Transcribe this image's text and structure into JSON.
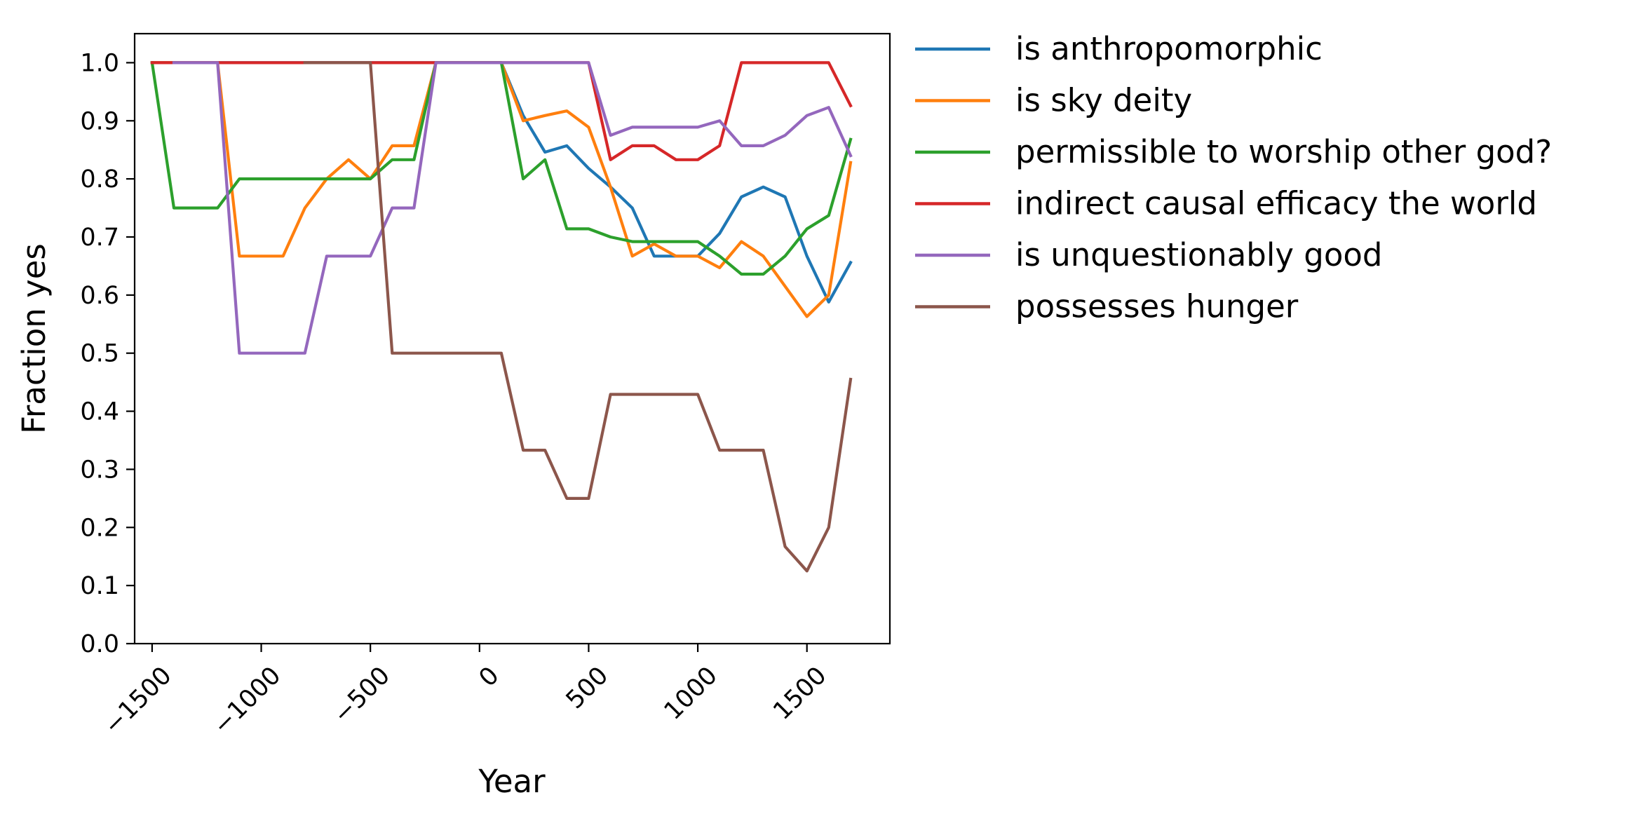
{
  "chart_data": {
    "type": "line",
    "title": "",
    "xlabel": "Year",
    "ylabel": "Fraction yes",
    "xlim": [
      -1580,
      1880
    ],
    "ylim": [
      0.0,
      1.05
    ],
    "grid": false,
    "legend_position": "outside-right-top",
    "xticks": [
      {
        "value": -1500,
        "label": "−1500"
      },
      {
        "value": -1000,
        "label": "−1000"
      },
      {
        "value": -500,
        "label": "−500"
      },
      {
        "value": 0,
        "label": "0"
      },
      {
        "value": 500,
        "label": "500"
      },
      {
        "value": 1000,
        "label": "1000"
      },
      {
        "value": 1500,
        "label": "1500"
      }
    ],
    "yticks": [
      {
        "value": 0.0,
        "label": "0.0"
      },
      {
        "value": 0.1,
        "label": "0.1"
      },
      {
        "value": 0.2,
        "label": "0.2"
      },
      {
        "value": 0.3,
        "label": "0.3"
      },
      {
        "value": 0.4,
        "label": "0.4"
      },
      {
        "value": 0.5,
        "label": "0.5"
      },
      {
        "value": 0.6,
        "label": "0.6"
      },
      {
        "value": 0.7,
        "label": "0.7"
      },
      {
        "value": 0.8,
        "label": "0.8"
      },
      {
        "value": 0.9,
        "label": "0.9"
      },
      {
        "value": 1.0,
        "label": "1.0"
      }
    ],
    "series": [
      {
        "name": "is anthropomorphic",
        "color": "#1f77b4",
        "x": [
          -1500,
          -1400,
          -1300,
          -1200,
          -1100,
          -1000,
          -900,
          -800,
          -700,
          -600,
          -500,
          -400,
          -300,
          -200,
          -100,
          0,
          100,
          200,
          300,
          400,
          500,
          600,
          700,
          800,
          900,
          1000,
          1100,
          1200,
          1300,
          1400,
          1500,
          1600,
          1700
        ],
        "y": [
          1.0,
          1.0,
          1.0,
          1.0,
          1.0,
          1.0,
          1.0,
          1.0,
          1.0,
          1.0,
          1.0,
          1.0,
          1.0,
          1.0,
          1.0,
          1.0,
          1.0,
          0.909,
          0.846,
          0.857,
          0.818,
          0.786,
          0.75,
          0.667,
          0.667,
          0.667,
          0.706,
          0.769,
          0.786,
          0.769,
          0.667,
          0.588,
          0.656
        ]
      },
      {
        "name": "is sky deity",
        "color": "#ff7f0e",
        "x": [
          -1500,
          -1400,
          -1300,
          -1200,
          -1100,
          -1000,
          -900,
          -800,
          -700,
          -600,
          -500,
          -400,
          -300,
          -200,
          -100,
          0,
          100,
          200,
          300,
          400,
          500,
          600,
          700,
          800,
          900,
          1000,
          1100,
          1200,
          1300,
          1400,
          1500,
          1600,
          1700
        ],
        "y": [
          1.0,
          1.0,
          1.0,
          1.0,
          0.667,
          0.667,
          0.667,
          0.75,
          0.8,
          0.833,
          0.8,
          0.857,
          0.857,
          1.0,
          1.0,
          1.0,
          1.0,
          0.9,
          0.909,
          0.917,
          0.889,
          0.786,
          0.667,
          0.688,
          0.667,
          0.667,
          0.647,
          0.692,
          0.667,
          0.615,
          0.563,
          0.6,
          0.828
        ]
      },
      {
        "name": "permissible to worship other god?",
        "color": "#2ca02c",
        "x": [
          -1500,
          -1400,
          -1300,
          -1200,
          -1100,
          -1000,
          -900,
          -800,
          -700,
          -600,
          -500,
          -400,
          -300,
          -200,
          -100,
          0,
          100,
          200,
          300,
          400,
          500,
          600,
          700,
          800,
          900,
          1000,
          1100,
          1200,
          1300,
          1400,
          1500,
          1600,
          1700
        ],
        "y": [
          1.0,
          0.75,
          0.75,
          0.75,
          0.8,
          0.8,
          0.8,
          0.8,
          0.8,
          0.8,
          0.8,
          0.833,
          0.833,
          1.0,
          1.0,
          1.0,
          1.0,
          0.8,
          0.833,
          0.714,
          0.714,
          0.7,
          0.692,
          0.692,
          0.692,
          0.692,
          0.667,
          0.636,
          0.636,
          0.667,
          0.714,
          0.737,
          0.868
        ]
      },
      {
        "name": "indirect causal efficacy the world",
        "color": "#d62728",
        "x": [
          -1500,
          -1400,
          -1300,
          -1200,
          -1100,
          -1000,
          -900,
          -800,
          -700,
          -600,
          -500,
          -400,
          -300,
          -200,
          -100,
          0,
          100,
          200,
          300,
          400,
          500,
          600,
          700,
          800,
          900,
          1000,
          1100,
          1200,
          1300,
          1400,
          1500,
          1600,
          1700
        ],
        "y": [
          1.0,
          1.0,
          1.0,
          1.0,
          1.0,
          1.0,
          1.0,
          1.0,
          1.0,
          1.0,
          1.0,
          1.0,
          1.0,
          1.0,
          1.0,
          1.0,
          1.0,
          1.0,
          1.0,
          1.0,
          1.0,
          0.833,
          0.857,
          0.857,
          0.833,
          0.833,
          0.857,
          1.0,
          1.0,
          1.0,
          1.0,
          1.0,
          0.926
        ]
      },
      {
        "name": "is unquestionably good",
        "color": "#9467bd",
        "x": [
          -1400,
          -1300,
          -1200,
          -1100,
          -1000,
          -900,
          -800,
          -700,
          -600,
          -500,
          -400,
          -300,
          -200,
          -100,
          0,
          100,
          200,
          300,
          400,
          500,
          600,
          700,
          800,
          900,
          1000,
          1100,
          1200,
          1300,
          1400,
          1500,
          1600,
          1700
        ],
        "y": [
          1.0,
          1.0,
          1.0,
          0.5,
          0.5,
          0.5,
          0.5,
          0.667,
          0.667,
          0.667,
          0.75,
          0.75,
          1.0,
          1.0,
          1.0,
          1.0,
          1.0,
          1.0,
          1.0,
          1.0,
          0.875,
          0.889,
          0.889,
          0.889,
          0.889,
          0.9,
          0.857,
          0.857,
          0.875,
          0.909,
          0.923,
          0.84
        ]
      },
      {
        "name": "possesses hunger",
        "color": "#8c564b",
        "x": [
          -800,
          -700,
          -600,
          -500,
          -400,
          -300,
          -200,
          -100,
          0,
          100,
          200,
          300,
          400,
          500,
          600,
          700,
          800,
          900,
          1000,
          1100,
          1200,
          1300,
          1400,
          1500,
          1600,
          1700
        ],
        "y": [
          1.0,
          1.0,
          1.0,
          1.0,
          0.5,
          0.5,
          0.5,
          0.5,
          0.5,
          0.5,
          0.333,
          0.333,
          0.25,
          0.25,
          0.429,
          0.429,
          0.429,
          0.429,
          0.429,
          0.333,
          0.333,
          0.333,
          0.167,
          0.125,
          0.2,
          0.455
        ]
      }
    ]
  }
}
